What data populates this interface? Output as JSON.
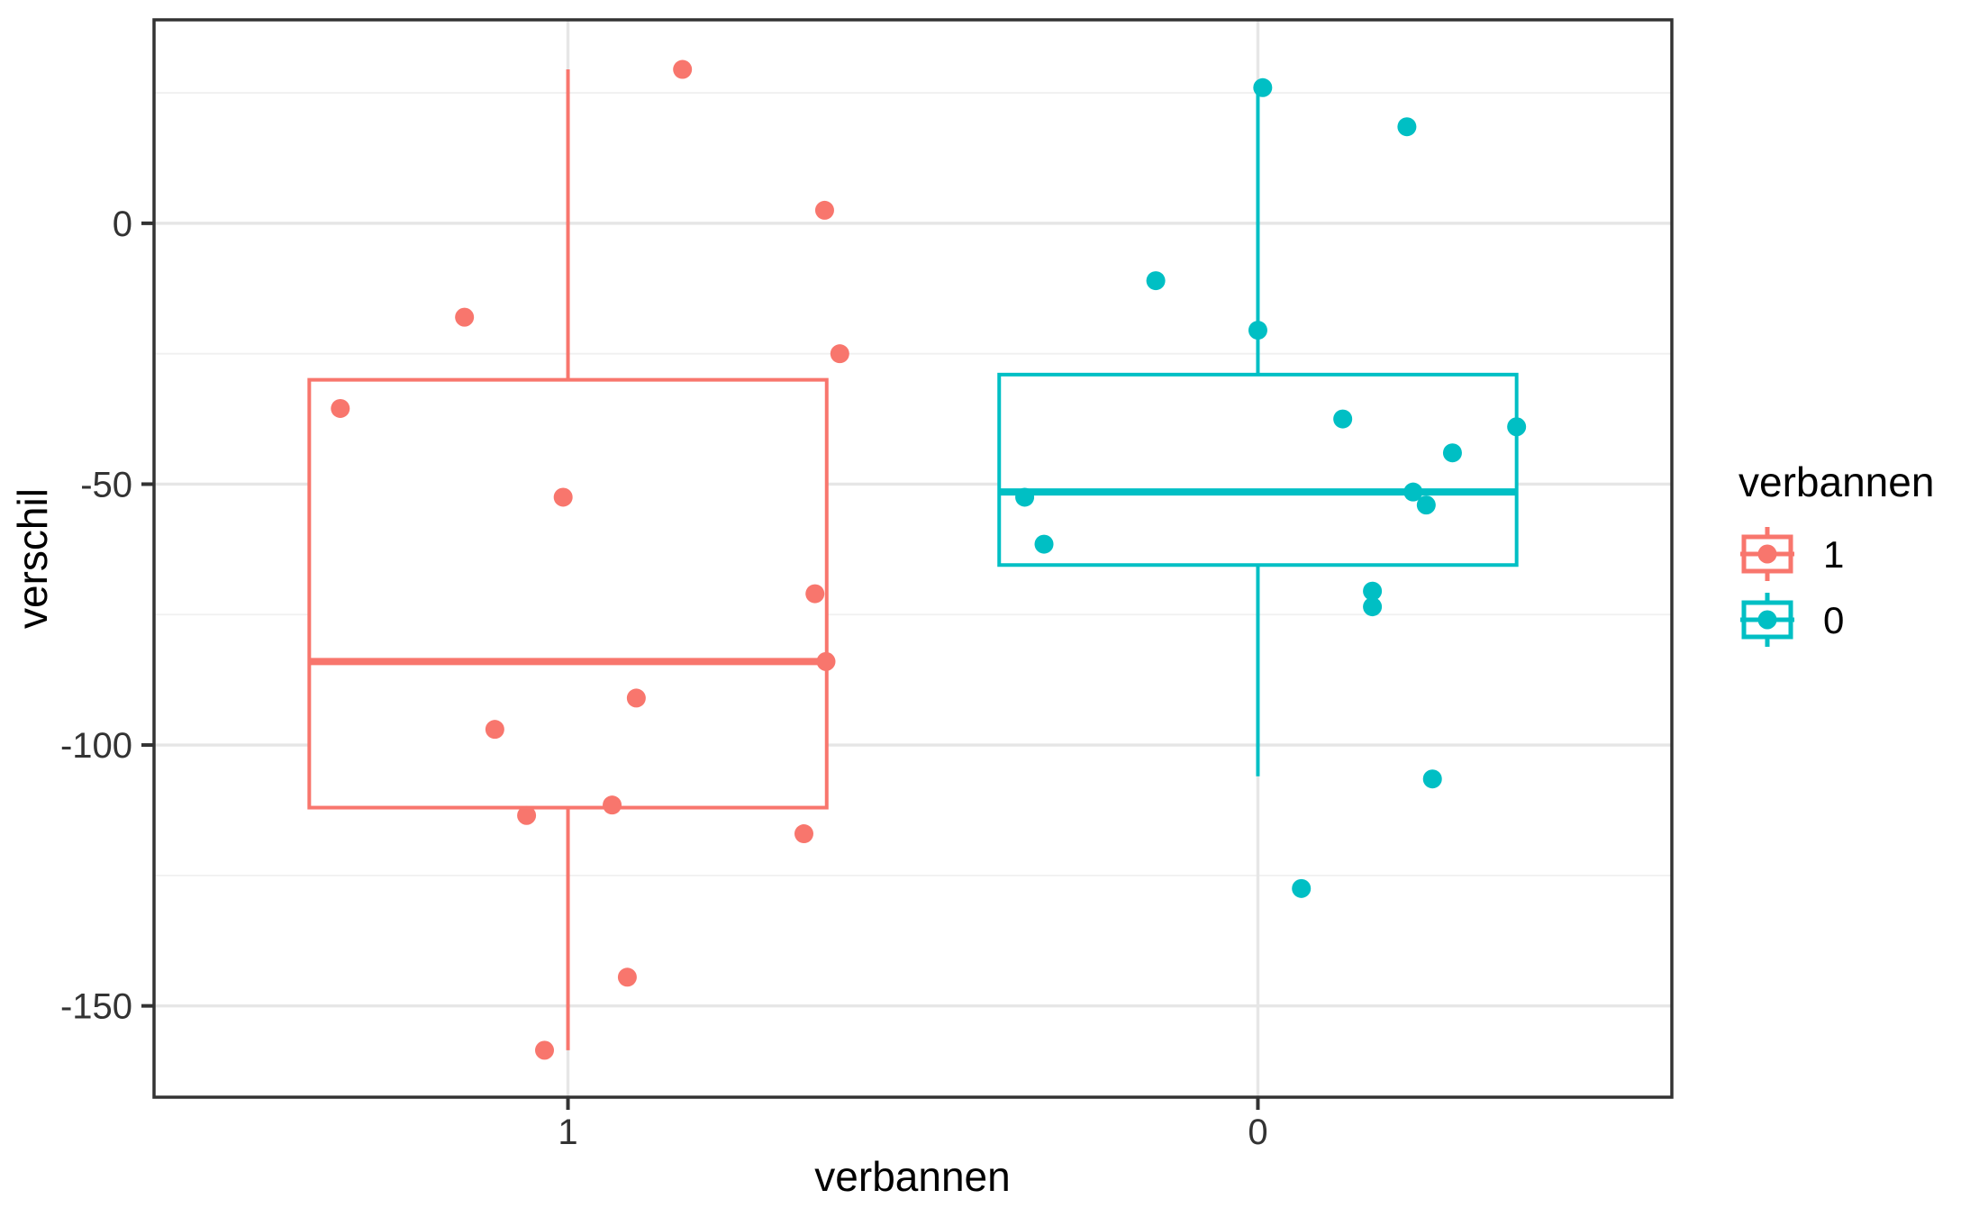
{
  "page": {
    "background": "#FFFFFF"
  },
  "chart_data": {
    "type": "boxplot",
    "title": "",
    "x_axis": {
      "label": "verbannen",
      "categories": [
        "1",
        "0"
      ]
    },
    "y_axis": {
      "label": "verschil",
      "ticks": [
        0,
        -50,
        -100,
        -150
      ],
      "tick_labels": [
        "0",
        "-50",
        "-100",
        "-150"
      ],
      "minor_ticks": [
        25,
        -25,
        -75,
        -125
      ],
      "domain": [
        -167.5,
        39
      ]
    },
    "grid": {
      "major": true,
      "minor": true,
      "vertical_major_at_categories": true
    },
    "legend": {
      "title": "verbannen",
      "position": "right",
      "entries": [
        {
          "label": "1",
          "color": "#F8766D"
        },
        {
          "label": "0",
          "color": "#00BFC4"
        }
      ]
    },
    "series": [
      {
        "name": "1",
        "color": "#F8766D",
        "box": {
          "whisker_low": -158.5,
          "q1": -112,
          "median": -84,
          "q3": -30,
          "whisker_high": 29.5
        },
        "points": [
          {
            "dx": 0.166,
            "y": 29.5
          },
          {
            "dx": 0.372,
            "y": 2.5
          },
          {
            "dx": -0.15,
            "y": -18
          },
          {
            "dx": 0.394,
            "y": -25
          },
          {
            "dx": -0.33,
            "y": -35.5
          },
          {
            "dx": -0.007,
            "y": -52.5
          },
          {
            "dx": 0.358,
            "y": -71
          },
          {
            "dx": 0.374,
            "y": -84
          },
          {
            "dx": 0.099,
            "y": -91
          },
          {
            "dx": -0.106,
            "y": -97
          },
          {
            "dx": 0.064,
            "y": -111.5
          },
          {
            "dx": -0.06,
            "y": -113.5
          },
          {
            "dx": 0.342,
            "y": -117
          },
          {
            "dx": 0.086,
            "y": -144.5
          },
          {
            "dx": -0.034,
            "y": -158.5
          }
        ]
      },
      {
        "name": "0",
        "color": "#00BFC4",
        "box": {
          "whisker_low": -106,
          "q1": -65.5,
          "median": -51.5,
          "q3": -29,
          "whisker_high": 26
        },
        "points": [
          {
            "dx": 0.007,
            "y": 26
          },
          {
            "dx": 0.216,
            "y": 18.5
          },
          {
            "dx": -0.148,
            "y": -11
          },
          {
            "dx": 0.0,
            "y": -20.5
          },
          {
            "dx": 0.123,
            "y": -37.5
          },
          {
            "dx": 0.375,
            "y": -39
          },
          {
            "dx": 0.282,
            "y": -44
          },
          {
            "dx": -0.338,
            "y": -52.5
          },
          {
            "dx": 0.225,
            "y": -51.5
          },
          {
            "dx": 0.244,
            "y": -54
          },
          {
            "dx": -0.31,
            "y": -61.5
          },
          {
            "dx": 0.166,
            "y": -70.5
          },
          {
            "dx": 0.166,
            "y": -73.5
          },
          {
            "dx": 0.253,
            "y": -106.5
          },
          {
            "dx": 0.063,
            "y": -127.5
          }
        ]
      }
    ],
    "style": {
      "panel_background": "#FFFFFF",
      "panel_border": "#333333",
      "grid_major": "#E6E6E6",
      "grid_minor": "#F0F0F0",
      "tick_mark": "#333333",
      "box_fill": "#FFFFFF",
      "tick_text": "#333333",
      "title_text": "#000000"
    }
  }
}
